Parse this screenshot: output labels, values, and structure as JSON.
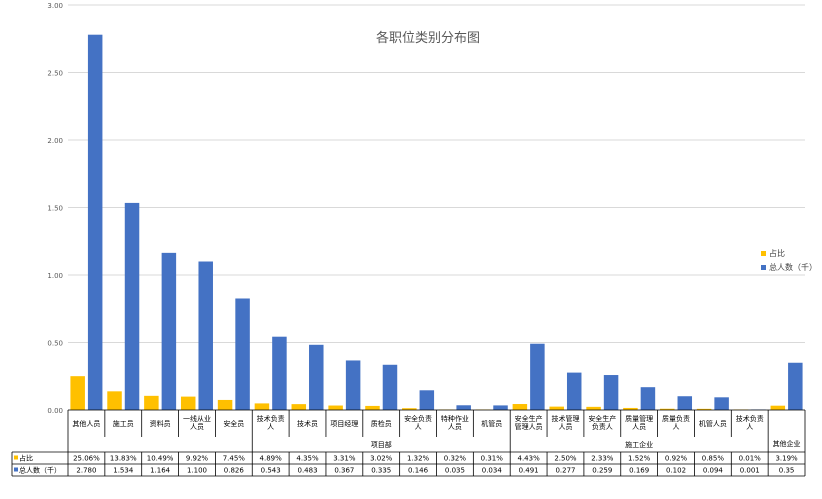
{
  "chart_data": {
    "type": "bar",
    "title": "各职位类别分布图",
    "ylim": [
      0,
      3.0
    ],
    "yticks": [
      "0.00",
      "0.50",
      "1.00",
      "1.50",
      "2.00",
      "2.50",
      "3.00"
    ],
    "grid": true,
    "legend_position": "right",
    "categories": [
      [
        "其他人员"
      ],
      [
        "施工员"
      ],
      [
        "资料员"
      ],
      [
        "一线从业",
        "人员"
      ],
      [
        "安全员"
      ],
      [
        "技术负责",
        "人"
      ],
      [
        "技术员"
      ],
      [
        "项目经理"
      ],
      [
        "质检员"
      ],
      [
        "安全负责",
        "人"
      ],
      [
        "特种作业",
        "人员"
      ],
      [
        "机管员"
      ],
      [
        "安全生产",
        "管理人员"
      ],
      [
        "技术管理",
        "人员"
      ],
      [
        "安全生产",
        "负责人"
      ],
      [
        "质量管理",
        "人员"
      ],
      [
        "质量负责",
        "人"
      ],
      [
        "机管人员"
      ],
      [
        "技术负责",
        "人"
      ],
      [
        ""
      ]
    ],
    "groups": [
      {
        "label": "",
        "start": 0,
        "end": 4
      },
      {
        "label": "项目部",
        "start": 5,
        "end": 11
      },
      {
        "label": "施工企业",
        "start": 12,
        "end": 18
      },
      {
        "label": "其他企业",
        "start": 19,
        "end": 19
      }
    ],
    "series": [
      {
        "name": "占比",
        "color": "#FFC000",
        "values": [
          0.2506,
          0.1383,
          0.1049,
          0.0992,
          0.0745,
          0.0489,
          0.0435,
          0.0331,
          0.0302,
          0.0132,
          0.0032,
          0.0031,
          0.0443,
          0.025,
          0.0233,
          0.0152,
          0.0092,
          0.0085,
          0.0001,
          0.0319
        ],
        "labels": [
          "25.06%",
          "13.83%",
          "10.49%",
          "9.92%",
          "7.45%",
          "4.89%",
          "4.35%",
          "3.31%",
          "3.02%",
          "1.32%",
          "0.32%",
          "0.31%",
          "4.43%",
          "2.50%",
          "2.33%",
          "1.52%",
          "0.92%",
          "0.85%",
          "0.01%",
          "3.19%"
        ]
      },
      {
        "name": "总人数（千）",
        "color": "#4472C4",
        "values": [
          2.78,
          1.534,
          1.164,
          1.1,
          0.826,
          0.543,
          0.483,
          0.367,
          0.335,
          0.146,
          0.035,
          0.034,
          0.491,
          0.277,
          0.259,
          0.169,
          0.102,
          0.094,
          0.001,
          0.35
        ],
        "labels": [
          "2.780",
          "1.534",
          "1.164",
          "1.100",
          "0.826",
          "0.543",
          "0.483",
          "0.367",
          "0.335",
          "0.146",
          "0.035",
          "0.034",
          "0.491",
          "0.277",
          "0.259",
          "0.169",
          "0.102",
          "0.094",
          "0.001",
          "0.35"
        ]
      }
    ]
  }
}
